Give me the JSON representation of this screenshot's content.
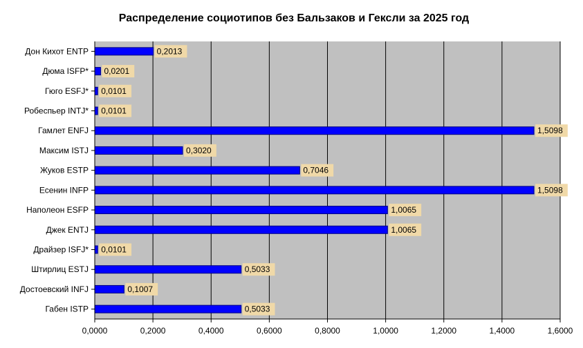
{
  "chart_data": {
    "type": "bar",
    "orientation": "horizontal",
    "title": "Распределение социотипов без Бальзаков и Гексли за 2025 год",
    "categories": [
      "Дон Кихот ENTP",
      "Дюма ISFP*",
      "Гюго ESFJ*",
      "Робеспьер INTJ*",
      "Гамлет ENFJ",
      "Максим ISTJ",
      "Жуков ESTP",
      "Есенин INFP",
      "Наполеон ESFP",
      "Джек ENTJ",
      "Драйзер ISFJ*",
      "Штирлиц ESTJ",
      "Достоевский INFJ",
      "Габен ISTP"
    ],
    "values": [
      0.2013,
      0.0201,
      0.0101,
      0.0101,
      1.5098,
      0.302,
      0.7046,
      1.5098,
      1.0065,
      1.0065,
      0.0101,
      0.5033,
      0.1007,
      0.5033
    ],
    "data_labels": [
      "0,2013",
      "0,0201",
      "0,0101",
      "0,0101",
      "1,5098",
      "0,3020",
      "0,7046",
      "1,5098",
      "1,0065",
      "1,0065",
      "0,0101",
      "0,5033",
      "0,1007",
      "0,5033"
    ],
    "xlim": [
      0,
      1.6
    ],
    "x_ticks": [
      0,
      0.2,
      0.4,
      0.6,
      0.8,
      1.0,
      1.2,
      1.4,
      1.6
    ],
    "x_tick_labels": [
      "0,0000",
      "0,2000",
      "0,4000",
      "0,6000",
      "0,8000",
      "1,0000",
      "1,2000",
      "1,4000",
      "1,6000"
    ],
    "xlabel": "",
    "ylabel": "",
    "grid": true,
    "legend": "none",
    "colors": {
      "bar": "#0000ff",
      "bar_border": "#000080",
      "plot_background": "#c0c0c0",
      "gridline": "#000000",
      "label_background": "#f0d9a8"
    }
  }
}
